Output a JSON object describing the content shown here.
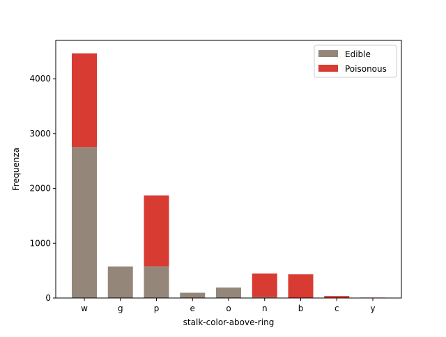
{
  "chart_data": {
    "type": "bar",
    "stacked": true,
    "title": "",
    "xlabel": "stalk-color-above-ring",
    "ylabel": "Frequenza",
    "categories": [
      "w",
      "g",
      "p",
      "e",
      "o",
      "n",
      "b",
      "c",
      "y"
    ],
    "series": [
      {
        "name": "Edible",
        "color": "#94877a",
        "values": [
          2752,
          576,
          576,
          96,
          192,
          16,
          0,
          0,
          0
        ]
      },
      {
        "name": "Poisonous",
        "color": "#d73b32",
        "values": [
          1712,
          0,
          1296,
          0,
          0,
          432,
          432,
          36,
          8
        ]
      }
    ],
    "ylim": [
      0,
      4700
    ],
    "yticks": [
      0,
      1000,
      2000,
      3000,
      4000
    ],
    "grid": false,
    "legend_position": "top-right"
  }
}
